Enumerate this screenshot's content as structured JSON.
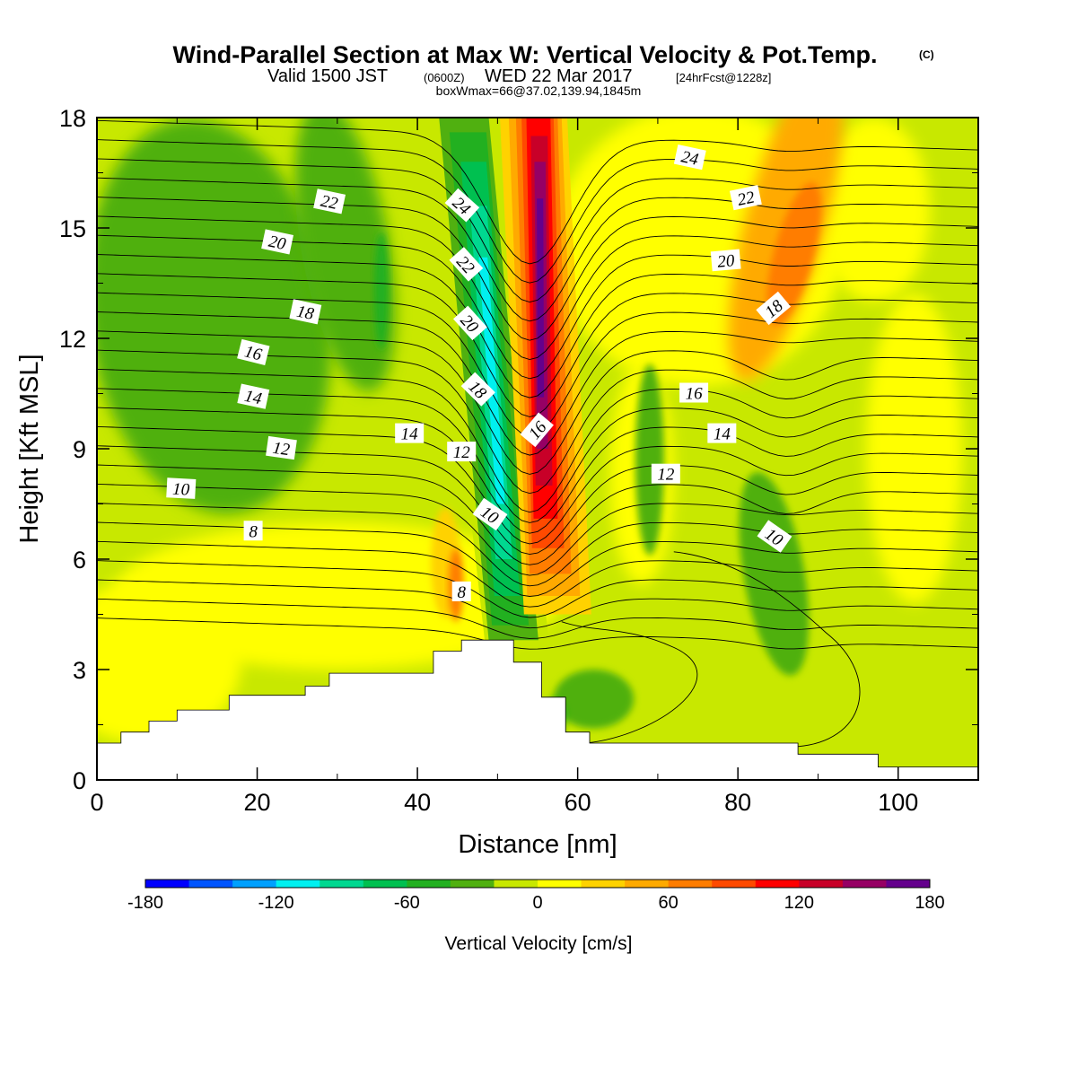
{
  "titles": {
    "main": "Wind-Parallel Section at Max W: Vertical Velocity & Pot.Temp.",
    "copyright": "(C)",
    "valid_prefix": "Valid 1500 JST",
    "valid_utc": "(0600Z)",
    "valid_date": "WED 22 Mar 2017",
    "forecast": "[24hrFcst@1228z]",
    "box_info": "boxWmax=66@37.02,139.94,1845m"
  },
  "colors": {
    "scale": [
      "#0000ff",
      "#0055ff",
      "#00a0ff",
      "#00f0f0",
      "#00d890",
      "#00c050",
      "#22b020",
      "#50b010",
      "#c8e800",
      "#ffff00",
      "#ffd200",
      "#ffaa00",
      "#ff7d00",
      "#ff4a00",
      "#ff0000",
      "#c80028",
      "#960064",
      "#64008c"
    ],
    "terrain": "#ffffff",
    "contour_line": "#000000"
  },
  "chart_data": {
    "type": "heatmap",
    "subtype": "vertical cross-section with filled vertical velocity and potential temperature contour lines",
    "xlabel": "Distance [nm]",
    "ylabel": "Height [Kft MSL]",
    "xlim": [
      0,
      110
    ],
    "ylim": [
      0,
      18
    ],
    "xticks": [
      0,
      20,
      40,
      60,
      80,
      100
    ],
    "yticks": [
      0,
      3,
      6,
      9,
      12,
      15,
      18
    ],
    "xtick_labels": [
      "0",
      "20",
      "40",
      "60",
      "80",
      "100"
    ],
    "ytick_labels": [
      "0",
      "3",
      "6",
      "9",
      "12",
      "15",
      "18"
    ],
    "colorbar": {
      "title": "Vertical Velocity [cm/s]",
      "range": [
        -180,
        180
      ],
      "interval": 20,
      "tick_values": [
        -180,
        -120,
        -60,
        0,
        60,
        120,
        180
      ],
      "tick_labels": [
        "-180",
        "-120",
        "-60",
        "0",
        "60",
        "120",
        "180"
      ]
    },
    "vertical_velocity_features": [
      {
        "name": "downdraft core",
        "x_center": 48.5,
        "height_range": [
          3.5,
          17
        ],
        "peak_cm_s": -120
      },
      {
        "name": "updraft core",
        "x_center": 55,
        "height_range": [
          6.5,
          18
        ],
        "peak_cm_s": 180
      },
      {
        "name": "upstream updraft",
        "x_center": 44.5,
        "height_range": [
          4.5,
          7
        ],
        "peak_cm_s": 60
      },
      {
        "name": "upper-level updraft",
        "x_center": 86,
        "height_range": [
          11,
          18
        ],
        "peak_cm_s": 60
      },
      {
        "name": "downstream downdraft",
        "x_center": 85,
        "height_range": [
          3,
          8.5
        ],
        "peak_cm_s": -40
      },
      {
        "name": "upper-left downdraft",
        "x_center": 18,
        "height_range": [
          9,
          18
        ],
        "peak_cm_s": -40
      }
    ],
    "terrain_profile": {
      "x": [
        0,
        3,
        3,
        6.5,
        6.5,
        10,
        10,
        16.5,
        16.5,
        26,
        26,
        29,
        29,
        42,
        42,
        45.5,
        45.5,
        52,
        52,
        55.5,
        55.5,
        58.5,
        58.5,
        61.5,
        61.5,
        87.5,
        87.5,
        97.5,
        97.5,
        110
      ],
      "height_kft": [
        1.0,
        1.0,
        1.3,
        1.3,
        1.6,
        1.6,
        1.9,
        1.9,
        2.3,
        2.3,
        2.55,
        2.55,
        2.9,
        2.9,
        3.5,
        3.5,
        3.8,
        3.8,
        3.2,
        3.2,
        2.25,
        2.25,
        1.3,
        1.3,
        1.0,
        1.0,
        0.7,
        0.7,
        0.35,
        0.35
      ]
    },
    "theta_contour_labels": [
      {
        "value": "24",
        "x": 45.5,
        "y": 15.6,
        "angle": 42
      },
      {
        "value": "22",
        "x": 46,
        "y": 14.0,
        "angle": 48
      },
      {
        "value": "20",
        "x": 46.5,
        "y": 12.4,
        "angle": 48
      },
      {
        "value": "18",
        "x": 47.5,
        "y": 10.6,
        "angle": 45
      },
      {
        "value": "16",
        "x": 55,
        "y": 9.5,
        "angle": -50
      },
      {
        "value": "14",
        "x": 39,
        "y": 9.4,
        "angle": 0
      },
      {
        "value": "12",
        "x": 45.5,
        "y": 8.9,
        "angle": 0
      },
      {
        "value": "10",
        "x": 49,
        "y": 7.2,
        "angle": 35
      },
      {
        "value": "8",
        "x": 45.5,
        "y": 5.1,
        "angle": 0
      },
      {
        "value": "22",
        "x": 29,
        "y": 15.7,
        "angle": 12
      },
      {
        "value": "20",
        "x": 22.5,
        "y": 14.6,
        "angle": 12
      },
      {
        "value": "18",
        "x": 26,
        "y": 12.7,
        "angle": 12
      },
      {
        "value": "16",
        "x": 19.5,
        "y": 11.6,
        "angle": 14
      },
      {
        "value": "14",
        "x": 19.5,
        "y": 10.4,
        "angle": 12
      },
      {
        "value": "12",
        "x": 23,
        "y": 9.0,
        "angle": 8
      },
      {
        "value": "10",
        "x": 10.5,
        "y": 7.9,
        "angle": 3
      },
      {
        "value": "8",
        "x": 19.5,
        "y": 6.75,
        "angle": 0
      },
      {
        "value": "24",
        "x": 74,
        "y": 16.9,
        "angle": 12
      },
      {
        "value": "22",
        "x": 81,
        "y": 15.8,
        "angle": -12
      },
      {
        "value": "20",
        "x": 78.5,
        "y": 14.1,
        "angle": -5
      },
      {
        "value": "18",
        "x": 84.5,
        "y": 12.8,
        "angle": -40
      },
      {
        "value": "16",
        "x": 74.5,
        "y": 10.5,
        "angle": 0
      },
      {
        "value": "14",
        "x": 78,
        "y": 9.4,
        "angle": 0
      },
      {
        "value": "12",
        "x": 71,
        "y": 8.3,
        "angle": 0
      },
      {
        "value": "10",
        "x": 84.5,
        "y": 6.6,
        "angle": 35
      }
    ]
  }
}
